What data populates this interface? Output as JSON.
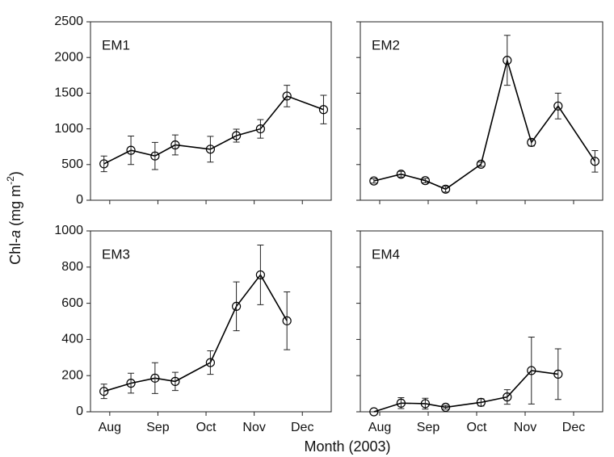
{
  "ylabel": [
    "Chl-",
    "a",
    " (mg m",
    "-2",
    ")"
  ],
  "xlabel": "Month (2003)",
  "chart_data": [
    {
      "type": "line",
      "title": "EM1",
      "color": "#000000",
      "x": [
        7.88,
        8.44,
        8.94,
        9.36,
        10.09,
        10.63,
        11.13,
        11.68,
        12.44
      ],
      "values": [
        510,
        700,
        620,
        775,
        715,
        905,
        1000,
        1460,
        1270
      ],
      "errors": [
        110,
        200,
        190,
        140,
        180,
        90,
        130,
        150,
        200
      ],
      "xlim": [
        7.6,
        12.6
      ],
      "xticks": [
        8,
        9,
        10,
        11,
        12
      ],
      "ylim": [
        0,
        2500
      ],
      "yticks": [
        0,
        500,
        1000,
        1500,
        2000,
        2500
      ]
    },
    {
      "type": "line",
      "title": "EM2",
      "color": "#000000",
      "x": [
        7.88,
        8.44,
        8.94,
        9.36,
        10.09,
        10.63,
        11.13,
        11.68,
        12.44
      ],
      "values": [
        270,
        365,
        275,
        155,
        505,
        1960,
        810,
        1320,
        545
      ],
      "errors": [
        30,
        40,
        30,
        40,
        30,
        350,
        50,
        180,
        150
      ],
      "xlim": [
        7.6,
        12.6
      ],
      "xticks": [
        8,
        9,
        10,
        11,
        12
      ],
      "ylim": [
        0,
        2500
      ],
      "yticks": [
        0,
        500,
        1000,
        1500,
        2000,
        2500
      ]
    },
    {
      "type": "line",
      "title": "EM3",
      "color": "#000000",
      "x": [
        7.88,
        8.44,
        8.94,
        9.36,
        10.09,
        10.63,
        11.13,
        11.68,
        12.44
      ],
      "values": [
        113,
        158,
        186,
        168,
        272,
        583,
        757,
        503,
        null
      ],
      "errors": [
        40,
        55,
        85,
        50,
        65,
        135,
        165,
        160,
        null
      ],
      "xlim": [
        7.6,
        12.6
      ],
      "xticks": [
        {
          "value": 8,
          "label": "Aug"
        },
        {
          "value": 9,
          "label": "Sep"
        },
        {
          "value": 10,
          "label": "Oct"
        },
        {
          "value": 11,
          "label": "Nov"
        },
        {
          "value": 12,
          "label": "Dec"
        }
      ],
      "ylim": [
        0,
        1000
      ],
      "yticks": [
        0,
        200,
        400,
        600,
        800,
        1000
      ]
    },
    {
      "type": "line",
      "title": "EM4",
      "color": "#000000",
      "x": [
        7.88,
        8.44,
        8.94,
        9.36,
        10.09,
        10.63,
        11.13,
        11.68,
        12.44
      ],
      "values": [
        0,
        48,
        45,
        25,
        52,
        82,
        228,
        208,
        null
      ],
      "errors": [
        0,
        30,
        30,
        10,
        20,
        40,
        185,
        140,
        null
      ],
      "xlim": [
        7.6,
        12.6
      ],
      "xticks": [
        {
          "value": 8,
          "label": "Aug"
        },
        {
          "value": 9,
          "label": "Sep"
        },
        {
          "value": 10,
          "label": "Oct"
        },
        {
          "value": 11,
          "label": "Nov"
        },
        {
          "value": 12,
          "label": "Dec"
        }
      ],
      "ylim": [
        0,
        1000
      ],
      "yticks": [
        0,
        200,
        400,
        600,
        800,
        1000
      ]
    }
  ]
}
